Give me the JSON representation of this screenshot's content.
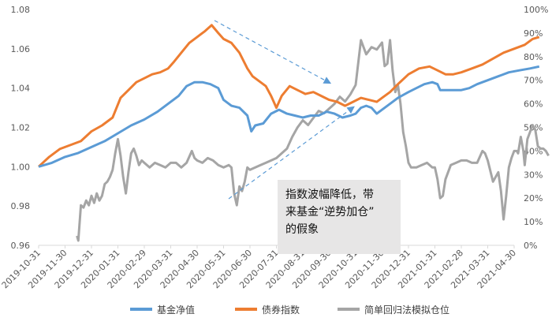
{
  "chart_data": {
    "type": "line",
    "x_ticks": [
      "2019-10-31",
      "2019-11-30",
      "2019-12-31",
      "2020-01-31",
      "2020-02-29",
      "2020-03-31",
      "2020-04-30",
      "2020-05-31",
      "2020-06-30",
      "2020-07-31",
      "2020-08-31",
      "2020-09-30",
      "2020-10-31",
      "2020-11-30",
      "2020-12-31",
      "2021-01-31",
      "2021-02-28",
      "2021-03-31",
      "2021-04-30"
    ],
    "y_left": {
      "min": 0.96,
      "max": 1.08,
      "ticks": [
        "0.96",
        "0.98",
        "1.00",
        "1.02",
        "1.04",
        "1.06",
        "1.08"
      ]
    },
    "y_right": {
      "min": 0,
      "max": 100,
      "ticks": [
        "0%",
        "10%",
        "20%",
        "30%",
        "40%",
        "50%",
        "60%",
        "70%",
        "80%",
        "90%",
        "100%"
      ]
    },
    "series": [
      {
        "name": "基金净值",
        "axis": "left",
        "color": "#5b9bd5",
        "points": [
          [
            0,
            1.0
          ],
          [
            0.5,
            1.002
          ],
          [
            1,
            1.005
          ],
          [
            1.5,
            1.007
          ],
          [
            2,
            1.01
          ],
          [
            2.5,
            1.013
          ],
          [
            3,
            1.017
          ],
          [
            3.5,
            1.021
          ],
          [
            4,
            1.024
          ],
          [
            4.5,
            1.028
          ],
          [
            5,
            1.033
          ],
          [
            5.3,
            1.036
          ],
          [
            5.6,
            1.041
          ],
          [
            5.9,
            1.043
          ],
          [
            6.2,
            1.043
          ],
          [
            6.5,
            1.042
          ],
          [
            6.8,
            1.04
          ],
          [
            7.0,
            1.034
          ],
          [
            7.3,
            1.031
          ],
          [
            7.6,
            1.03
          ],
          [
            7.9,
            1.026
          ],
          [
            8.05,
            1.018
          ],
          [
            8.2,
            1.021
          ],
          [
            8.5,
            1.022
          ],
          [
            8.8,
            1.027
          ],
          [
            9.1,
            1.029
          ],
          [
            9.4,
            1.027
          ],
          [
            9.7,
            1.026
          ],
          [
            10,
            1.025
          ],
          [
            10.3,
            1.026
          ],
          [
            10.6,
            1.026
          ],
          [
            10.9,
            1.028
          ],
          [
            11.2,
            1.027
          ],
          [
            11.5,
            1.025
          ],
          [
            11.8,
            1.026
          ],
          [
            12.0,
            1.027
          ],
          [
            12.2,
            1.03
          ],
          [
            12.4,
            1.031
          ],
          [
            12.6,
            1.03
          ],
          [
            12.8,
            1.027
          ],
          [
            13,
            1.029
          ],
          [
            13.3,
            1.032
          ],
          [
            13.6,
            1.035
          ],
          [
            14,
            1.038
          ],
          [
            14.3,
            1.04
          ],
          [
            14.6,
            1.042
          ],
          [
            14.9,
            1.043
          ],
          [
            15.1,
            1.042
          ],
          [
            15.2,
            1.039
          ],
          [
            15.6,
            1.039
          ],
          [
            16,
            1.039
          ],
          [
            16.3,
            1.04
          ],
          [
            16.6,
            1.042
          ],
          [
            17,
            1.044
          ],
          [
            17.4,
            1.046
          ],
          [
            17.8,
            1.048
          ],
          [
            18.2,
            1.049
          ],
          [
            18.6,
            1.05
          ],
          [
            18.95,
            1.051
          ]
        ]
      },
      {
        "name": "债券指数",
        "axis": "left",
        "color": "#ed7d31",
        "points": [
          [
            0,
            1.0
          ],
          [
            0.4,
            1.005
          ],
          [
            0.8,
            1.009
          ],
          [
            1.2,
            1.011
          ],
          [
            1.6,
            1.013
          ],
          [
            2,
            1.018
          ],
          [
            2.4,
            1.021
          ],
          [
            2.8,
            1.025
          ],
          [
            3.1,
            1.035
          ],
          [
            3.4,
            1.039
          ],
          [
            3.7,
            1.043
          ],
          [
            4.0,
            1.045
          ],
          [
            4.3,
            1.047
          ],
          [
            4.6,
            1.048
          ],
          [
            4.9,
            1.05
          ],
          [
            5.1,
            1.053
          ],
          [
            5.4,
            1.058
          ],
          [
            5.7,
            1.063
          ],
          [
            6.0,
            1.066
          ],
          [
            6.3,
            1.069
          ],
          [
            6.55,
            1.072
          ],
          [
            6.8,
            1.068
          ],
          [
            7.0,
            1.065
          ],
          [
            7.3,
            1.063
          ],
          [
            7.6,
            1.058
          ],
          [
            7.9,
            1.05
          ],
          [
            8.1,
            1.046
          ],
          [
            8.4,
            1.043
          ],
          [
            8.6,
            1.041
          ],
          [
            8.8,
            1.036
          ],
          [
            9.0,
            1.03
          ],
          [
            9.2,
            1.036
          ],
          [
            9.5,
            1.041
          ],
          [
            9.8,
            1.039
          ],
          [
            10.1,
            1.037
          ],
          [
            10.4,
            1.038
          ],
          [
            10.7,
            1.036
          ],
          [
            11.0,
            1.034
          ],
          [
            11.3,
            1.033
          ],
          [
            11.6,
            1.031
          ],
          [
            11.9,
            1.033
          ],
          [
            12.2,
            1.035
          ],
          [
            12.5,
            1.034
          ],
          [
            12.8,
            1.033
          ],
          [
            13.0,
            1.035
          ],
          [
            13.3,
            1.038
          ],
          [
            13.6,
            1.042
          ],
          [
            14.0,
            1.047
          ],
          [
            14.4,
            1.05
          ],
          [
            14.8,
            1.051
          ],
          [
            15.1,
            1.049
          ],
          [
            15.4,
            1.047
          ],
          [
            15.7,
            1.047
          ],
          [
            16,
            1.048
          ],
          [
            16.4,
            1.05
          ],
          [
            16.8,
            1.052
          ],
          [
            17.2,
            1.055
          ],
          [
            17.6,
            1.058
          ],
          [
            18.0,
            1.06
          ],
          [
            18.4,
            1.062
          ],
          [
            18.7,
            1.065
          ],
          [
            18.95,
            1.066
          ]
        ]
      },
      {
        "name": "简单回归法模拟仓位",
        "axis": "right",
        "color": "#a5a5a5",
        "points": [
          [
            1.45,
            4
          ],
          [
            1.5,
            2
          ],
          [
            1.6,
            17
          ],
          [
            1.7,
            16
          ],
          [
            1.8,
            19
          ],
          [
            1.9,
            17
          ],
          [
            2.0,
            21
          ],
          [
            2.1,
            18
          ],
          [
            2.2,
            22
          ],
          [
            2.3,
            19
          ],
          [
            2.4,
            21
          ],
          [
            2.5,
            26
          ],
          [
            2.6,
            27
          ],
          [
            2.7,
            29
          ],
          [
            2.8,
            32
          ],
          [
            2.9,
            39
          ],
          [
            3.0,
            45
          ],
          [
            3.1,
            38
          ],
          [
            3.2,
            29
          ],
          [
            3.3,
            22
          ],
          [
            3.4,
            31
          ],
          [
            3.5,
            39
          ],
          [
            3.6,
            41
          ],
          [
            3.7,
            38
          ],
          [
            3.8,
            34
          ],
          [
            3.9,
            36
          ],
          [
            4.0,
            35
          ],
          [
            4.1,
            34
          ],
          [
            4.2,
            33
          ],
          [
            4.4,
            35
          ],
          [
            4.6,
            34
          ],
          [
            4.8,
            33
          ],
          [
            5.0,
            35
          ],
          [
            5.2,
            35
          ],
          [
            5.4,
            33
          ],
          [
            5.6,
            35
          ],
          [
            5.8,
            40
          ],
          [
            5.9,
            37
          ],
          [
            6.0,
            36
          ],
          [
            6.2,
            35
          ],
          [
            6.4,
            37
          ],
          [
            6.6,
            36
          ],
          [
            6.8,
            34
          ],
          [
            7.0,
            33
          ],
          [
            7.2,
            34
          ],
          [
            7.3,
            33
          ],
          [
            7.4,
            22
          ],
          [
            7.5,
            17
          ],
          [
            7.6,
            25
          ],
          [
            7.7,
            23
          ],
          [
            7.8,
            27
          ],
          [
            7.9,
            33
          ],
          [
            8.0,
            32
          ],
          [
            8.2,
            33
          ],
          [
            8.4,
            34
          ],
          [
            8.6,
            35
          ],
          [
            8.8,
            36
          ],
          [
            9.0,
            37
          ],
          [
            9.2,
            39
          ],
          [
            9.4,
            41
          ],
          [
            9.6,
            46
          ],
          [
            9.8,
            50
          ],
          [
            10.0,
            53
          ],
          [
            10.2,
            51
          ],
          [
            10.4,
            54
          ],
          [
            10.6,
            57
          ],
          [
            10.8,
            56
          ],
          [
            11.0,
            58
          ],
          [
            11.2,
            60
          ],
          [
            11.4,
            63
          ],
          [
            11.6,
            61
          ],
          [
            11.8,
            64
          ],
          [
            12.0,
            68
          ],
          [
            12.2,
            87
          ],
          [
            12.4,
            81
          ],
          [
            12.6,
            84
          ],
          [
            12.8,
            83
          ],
          [
            13.0,
            86
          ],
          [
            13.1,
            76
          ],
          [
            13.2,
            77
          ],
          [
            13.3,
            87
          ],
          [
            13.4,
            74
          ],
          [
            13.5,
            65
          ],
          [
            13.6,
            68
          ],
          [
            13.7,
            60
          ],
          [
            13.8,
            48
          ],
          [
            13.9,
            42
          ],
          [
            14.0,
            35
          ],
          [
            14.1,
            33
          ],
          [
            14.3,
            33
          ],
          [
            14.5,
            34
          ],
          [
            14.7,
            35
          ],
          [
            14.9,
            33
          ],
          [
            15.0,
            33
          ],
          [
            15.1,
            28
          ],
          [
            15.2,
            20
          ],
          [
            15.3,
            21
          ],
          [
            15.4,
            28
          ],
          [
            15.6,
            34
          ],
          [
            15.8,
            35
          ],
          [
            16.0,
            36
          ],
          [
            16.2,
            36
          ],
          [
            16.4,
            35
          ],
          [
            16.6,
            35
          ],
          [
            16.8,
            40
          ],
          [
            16.9,
            39
          ],
          [
            17.0,
            36
          ],
          [
            17.2,
            27
          ],
          [
            17.4,
            31
          ],
          [
            17.5,
            23
          ],
          [
            17.6,
            11
          ],
          [
            17.7,
            21
          ],
          [
            17.8,
            33
          ],
          [
            17.9,
            37
          ],
          [
            18.0,
            40
          ],
          [
            18.1,
            40
          ],
          [
            18.15,
            39
          ],
          [
            18.25,
            46
          ],
          [
            18.35,
            40
          ],
          [
            18.4,
            34
          ],
          [
            18.5,
            45
          ],
          [
            18.6,
            48
          ],
          [
            18.7,
            51
          ],
          [
            18.8,
            49
          ],
          [
            18.9,
            42
          ],
          [
            19.0,
            41
          ],
          [
            19.1,
            41
          ],
          [
            19.2,
            40
          ],
          [
            19.3,
            38
          ]
        ]
      }
    ],
    "annotation": "指数波幅降低，带来基金“逆势加仓”的假象",
    "annotation_lines": [
      "指数波幅降低，带",
      "来基金“逆势加仓”",
      "的假象"
    ],
    "legend_position": "bottom"
  }
}
